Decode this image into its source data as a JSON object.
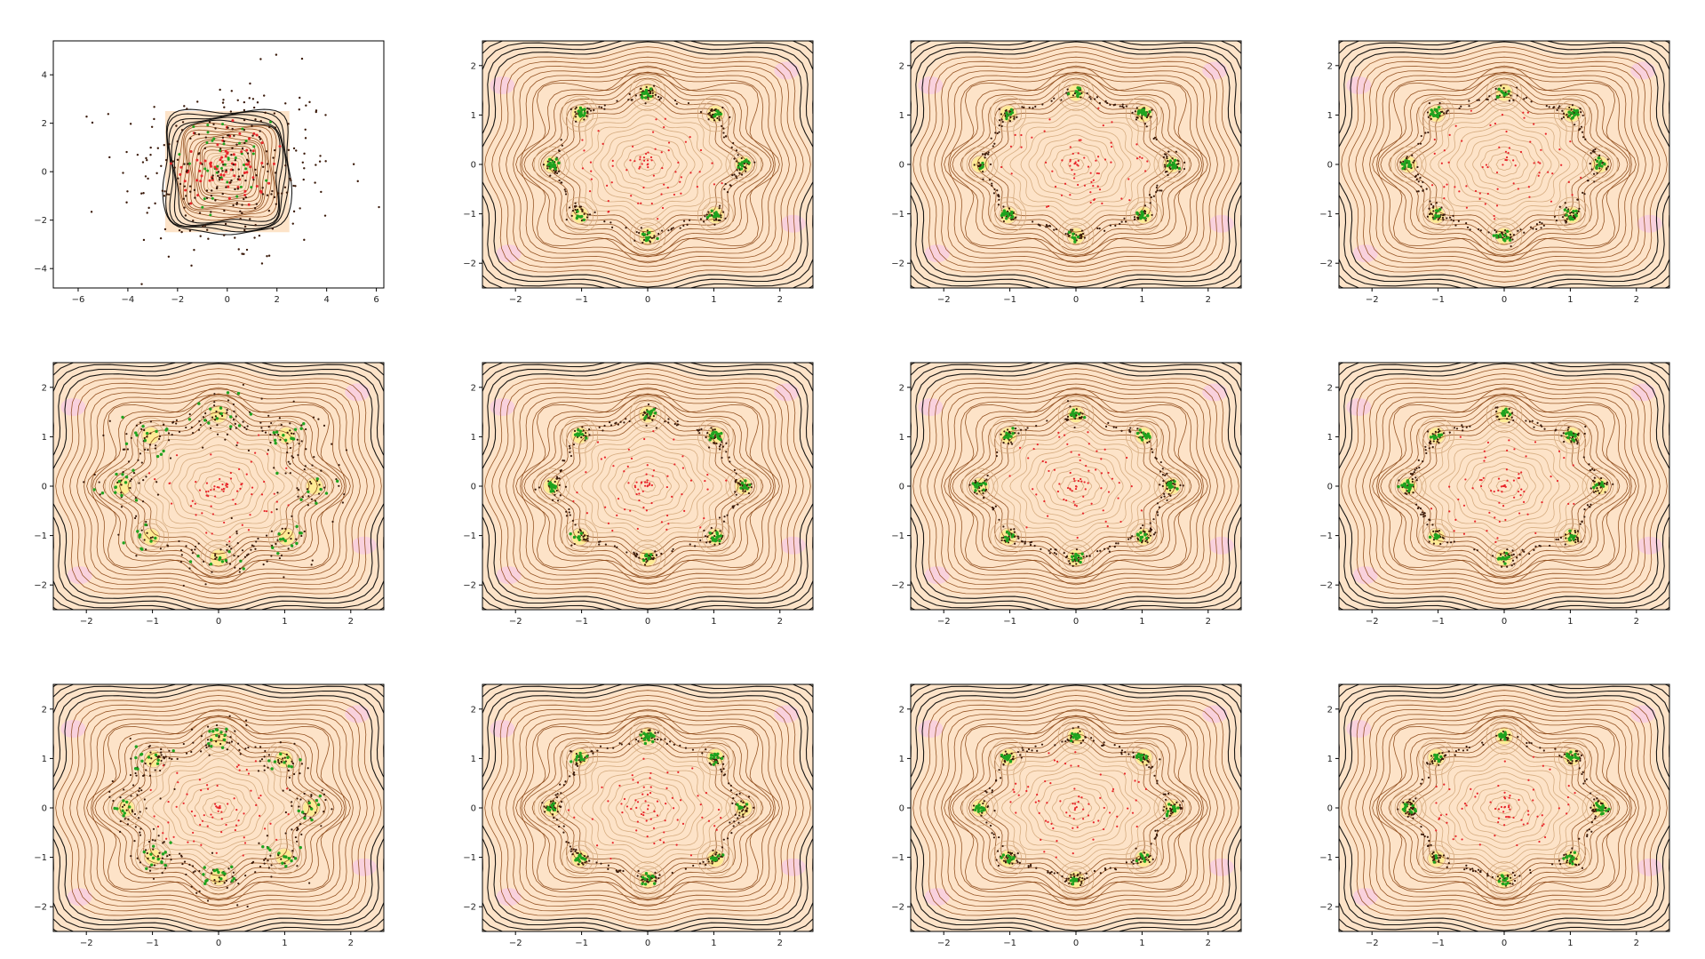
{
  "figure": {
    "grid_rows": 3,
    "grid_cols": 4
  },
  "chart_data": [
    {
      "panel": 1,
      "type": "scatter",
      "overlay": "contour",
      "title": "",
      "xlabel": "",
      "ylabel": "",
      "xlim": [
        -7,
        6.3
      ],
      "ylim": [
        -4.8,
        5.4
      ],
      "xticks": [
        -6,
        -4,
        -2,
        0,
        2,
        4,
        6
      ],
      "yticks": [
        -4,
        -2,
        0,
        2,
        4
      ],
      "xtick_labels": [
        "−6",
        "−4",
        "−2",
        "0",
        "2",
        "4",
        "6"
      ],
      "ytick_labels": [
        "−4",
        "−2",
        "0",
        "2",
        "4"
      ],
      "contour_region": {
        "x": [
          -2.5,
          2.5
        ],
        "y": [
          -2.5,
          2.5
        ]
      },
      "distribution": "gaussian-spread",
      "points_shown": "black scatter points spread across full range; red and green points concentrated near origin",
      "grid": false,
      "legend": "none"
    },
    {
      "panel": 2,
      "type": "scatter",
      "overlay": "contour",
      "title": "",
      "xlabel": "",
      "ylabel": "",
      "xlim": [
        -2.5,
        2.5
      ],
      "ylim": [
        -2.5,
        2.5
      ],
      "xticks": [
        -2,
        -1,
        0,
        1,
        2
      ],
      "yticks": [
        -2,
        -1,
        0,
        1,
        2
      ],
      "xtick_labels": [
        "−2",
        "−1",
        "0",
        "1",
        "2"
      ],
      "ytick_labels": [
        "−2",
        "−1",
        "0",
        "1",
        "2"
      ],
      "distribution": "ring-of-8",
      "ring_radius": 1.45,
      "spread": 0.08,
      "grid": false,
      "legend": "none"
    },
    {
      "panel": 3,
      "type": "scatter",
      "overlay": "contour",
      "title": "",
      "xlabel": "",
      "ylabel": "",
      "xlim": [
        -2.5,
        2.5
      ],
      "ylim": [
        -2.5,
        2.5
      ],
      "xticks": [
        -2,
        -1,
        0,
        1,
        2
      ],
      "yticks": [
        -2,
        -1,
        0,
        1,
        2
      ],
      "xtick_labels": [
        "−2",
        "−1",
        "0",
        "1",
        "2"
      ],
      "ytick_labels": [
        "−2",
        "−1",
        "0",
        "1",
        "2"
      ],
      "distribution": "ring-of-8",
      "ring_radius": 1.45,
      "spread": 0.08,
      "grid": false,
      "legend": "none"
    },
    {
      "panel": 4,
      "type": "scatter",
      "overlay": "contour",
      "title": "",
      "xlabel": "",
      "ylabel": "",
      "xlim": [
        -2.5,
        2.5
      ],
      "ylim": [
        -2.5,
        2.5
      ],
      "xticks": [
        -2,
        -1,
        0,
        1,
        2
      ],
      "yticks": [
        -2,
        -1,
        0,
        1,
        2
      ],
      "xtick_labels": [
        "−2",
        "−1",
        "0",
        "1",
        "2"
      ],
      "ytick_labels": [
        "−2",
        "−1",
        "0",
        "1",
        "2"
      ],
      "distribution": "ring-of-8",
      "ring_radius": 1.45,
      "spread": 0.09,
      "grid": false,
      "legend": "none"
    },
    {
      "panel": 5,
      "type": "scatter",
      "overlay": "contour",
      "title": "",
      "xlabel": "",
      "ylabel": "",
      "xlim": [
        -2.5,
        2.5
      ],
      "ylim": [
        -2.5,
        2.5
      ],
      "xticks": [
        -2,
        -1,
        0,
        1,
        2
      ],
      "yticks": [
        -2,
        -1,
        0,
        1,
        2
      ],
      "xtick_labels": [
        "−2",
        "−1",
        "0",
        "1",
        "2"
      ],
      "ytick_labels": [
        "−2",
        "−1",
        "0",
        "1",
        "2"
      ],
      "distribution": "ring-of-8-diffuse",
      "ring_radius": 1.45,
      "spread": 0.35,
      "grid": false,
      "legend": "none"
    },
    {
      "panel": 6,
      "type": "scatter",
      "overlay": "contour",
      "title": "",
      "xlabel": "",
      "ylabel": "",
      "xlim": [
        -2.5,
        2.5
      ],
      "ylim": [
        -2.5,
        2.5
      ],
      "xticks": [
        -2,
        -1,
        0,
        1,
        2
      ],
      "yticks": [
        -2,
        -1,
        0,
        1,
        2
      ],
      "xtick_labels": [
        "−2",
        "−1",
        "0",
        "1",
        "2"
      ],
      "ytick_labels": [
        "−2",
        "−1",
        "0",
        "1",
        "2"
      ],
      "distribution": "ring-of-8",
      "ring_radius": 1.45,
      "spread": 0.08,
      "grid": false,
      "legend": "none"
    },
    {
      "panel": 7,
      "type": "scatter",
      "overlay": "contour",
      "title": "",
      "xlabel": "",
      "ylabel": "",
      "xlim": [
        -2.5,
        2.5
      ],
      "ylim": [
        -2.5,
        2.5
      ],
      "xticks": [
        -2,
        -1,
        0,
        1,
        2
      ],
      "yticks": [
        -2,
        -1,
        0,
        1,
        2
      ],
      "xtick_labels": [
        "−2",
        "−1",
        "0",
        "1",
        "2"
      ],
      "ytick_labels": [
        "−2",
        "−1",
        "0",
        "1",
        "2"
      ],
      "distribution": "ring-of-8",
      "ring_radius": 1.45,
      "spread": 0.08,
      "grid": false,
      "legend": "none"
    },
    {
      "panel": 8,
      "type": "scatter",
      "overlay": "contour",
      "title": "",
      "xlabel": "",
      "ylabel": "",
      "xlim": [
        -2.5,
        2.5
      ],
      "ylim": [
        -2.5,
        2.5
      ],
      "xticks": [
        -2,
        -1,
        0,
        1,
        2
      ],
      "yticks": [
        -2,
        -1,
        0,
        1,
        2
      ],
      "xtick_labels": [
        "−2",
        "−1",
        "0",
        "1",
        "2"
      ],
      "ytick_labels": [
        "−2",
        "−1",
        "0",
        "1",
        "2"
      ],
      "distribution": "ring-of-8",
      "ring_radius": 1.45,
      "spread": 0.08,
      "grid": false,
      "legend": "none"
    },
    {
      "panel": 9,
      "type": "scatter",
      "overlay": "contour",
      "title": "",
      "xlabel": "",
      "ylabel": "",
      "xlim": [
        -2.5,
        2.5
      ],
      "ylim": [
        -2.5,
        2.5
      ],
      "xticks": [
        -2,
        -1,
        0,
        1,
        2
      ],
      "yticks": [
        -2,
        -1,
        0,
        1,
        2
      ],
      "xtick_labels": [
        "−2",
        "−1",
        "0",
        "1",
        "2"
      ],
      "ytick_labels": [
        "−2",
        "−1",
        "0",
        "1",
        "2"
      ],
      "distribution": "ring-of-8-diffuse",
      "ring_radius": 1.4,
      "spread": 0.22,
      "grid": false,
      "legend": "none"
    },
    {
      "panel": 10,
      "type": "scatter",
      "overlay": "contour",
      "title": "",
      "xlabel": "",
      "ylabel": "",
      "xlim": [
        -2.5,
        2.5
      ],
      "ylim": [
        -2.5,
        2.5
      ],
      "xticks": [
        -2,
        -1,
        0,
        1,
        2
      ],
      "yticks": [
        -2,
        -1,
        0,
        1,
        2
      ],
      "xtick_labels": [
        "−2",
        "−1",
        "0",
        "1",
        "2"
      ],
      "ytick_labels": [
        "−2",
        "−1",
        "0",
        "1",
        "2"
      ],
      "distribution": "ring-of-8",
      "ring_radius": 1.45,
      "spread": 0.08,
      "grid": false,
      "legend": "none"
    },
    {
      "panel": 11,
      "type": "scatter",
      "overlay": "contour",
      "title": "",
      "xlabel": "",
      "ylabel": "",
      "xlim": [
        -2.5,
        2.5
      ],
      "ylim": [
        -2.5,
        2.5
      ],
      "xticks": [
        -2,
        -1,
        0,
        1,
        2
      ],
      "yticks": [
        -2,
        -1,
        0,
        1,
        2
      ],
      "xtick_labels": [
        "−2",
        "−1",
        "0",
        "1",
        "2"
      ],
      "ytick_labels": [
        "−2",
        "−1",
        "0",
        "1",
        "2"
      ],
      "distribution": "ring-of-8",
      "ring_radius": 1.45,
      "spread": 0.08,
      "grid": false,
      "legend": "none"
    },
    {
      "panel": 12,
      "type": "scatter",
      "overlay": "contour",
      "title": "",
      "xlabel": "",
      "ylabel": "",
      "xlim": [
        -2.5,
        2.5
      ],
      "ylim": [
        -2.5,
        2.5
      ],
      "xticks": [
        -2,
        -1,
        0,
        1,
        2
      ],
      "yticks": [
        -2,
        -1,
        0,
        1,
        2
      ],
      "xtick_labels": [
        "−2",
        "−1",
        "0",
        "1",
        "2"
      ],
      "ytick_labels": [
        "−2",
        "−1",
        "0",
        "1",
        "2"
      ],
      "distribution": "ring-of-8",
      "ring_radius": 1.45,
      "spread": 0.08,
      "grid": false,
      "legend": "none"
    }
  ],
  "colors": {
    "background": "#ffffff",
    "axes_frame": "#000000",
    "contour_outer": "#000000",
    "contour_mid": "#8b4513",
    "contour_inner": "#d2a679",
    "fill_base": "#fde3c8",
    "fill_low": "#f7c9e6",
    "mode_highlight": "#fff36b",
    "point_dark": "#3a1a0a",
    "point_red": "#e8262a",
    "point_green": "#1fa31f"
  }
}
